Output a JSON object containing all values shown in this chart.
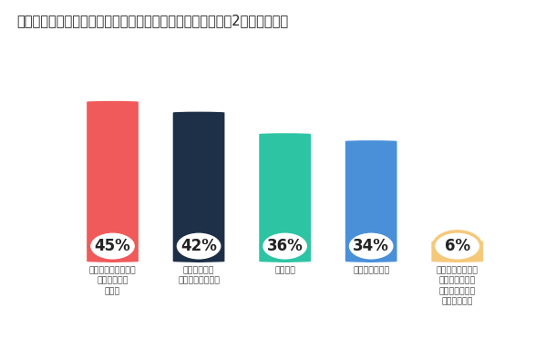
{
  "title": "コンプライアンス部門と事業部門間で摩擦が発生する要因（2つまで選択）",
  "categories": [
    "コミュニケーション\nとコラボレー\nション",
    "リスク管理に\n対するアプローチ",
    "規制変更",
    "ポリシーの運用",
    "コンプライアンス\n部門と事業部門\n間で大きな摩擦\nの発生はない"
  ],
  "values": [
    45,
    42,
    36,
    34,
    6
  ],
  "labels": [
    "45%",
    "42%",
    "36%",
    "34%",
    "6%"
  ],
  "bar_colors": [
    "#F05A5A",
    "#1E3048",
    "#2DC4A4",
    "#4A90D9",
    "#F5C97A"
  ],
  "background_color": "#FFFFFF",
  "title_fontsize": 10.5,
  "label_fontsize": 12
}
